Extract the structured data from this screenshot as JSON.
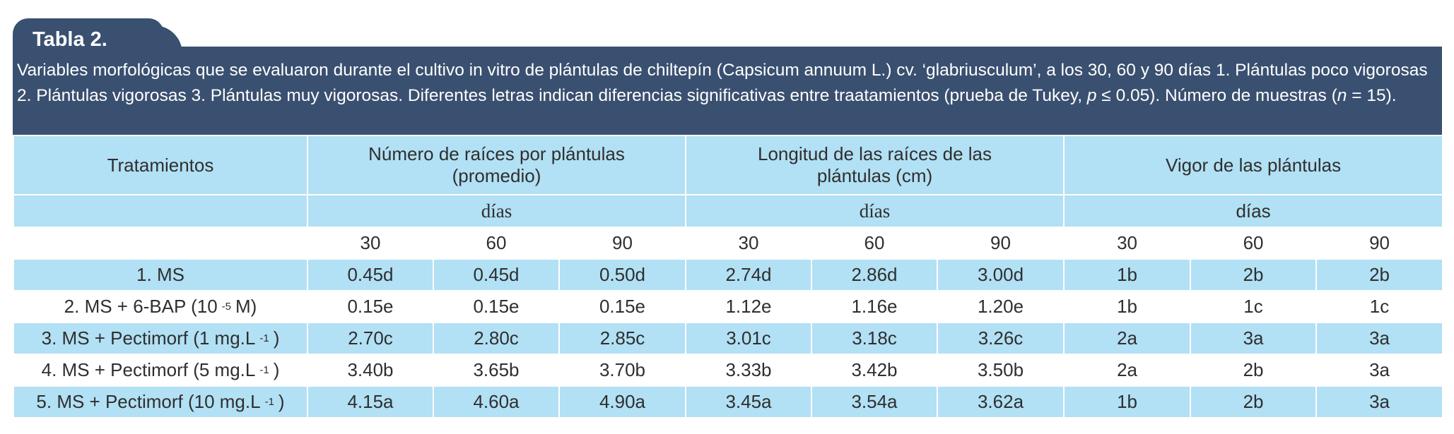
{
  "table_label": "Tabla 2.",
  "caption": {
    "part1": "Variables morfológicas que se evaluaron durante el cultivo in vitro de plántulas de chiltepín (Capsicum annuum L.) cv. ‘glabriusculum’, a los 30, 60 y 90 días 1. Plántulas poco vigorosas 2. Plántulas vigorosas 3. Plántulas muy vigorosas. Diferentes letras indican diferencias significativas entre traatamientos (prueba de Tukey, ",
    "p": "p",
    "part2": " ≤ 0.05). Número de muestras (",
    "n": "n",
    "part3": " = 15)."
  },
  "headers": {
    "treatments": "Tratamientos",
    "group1": "Número de raíces por plántulas (promedio)",
    "group2": "Longitud de las raíces de las plántulas (cm)",
    "group3": "Vigor de las plántulas",
    "dias1": "días",
    "dias2": "días",
    "dias3": "días",
    "days": [
      "30",
      "60",
      "90",
      "30",
      "60",
      "90",
      "30",
      "60",
      "90"
    ]
  },
  "rows": [
    {
      "label": "1. MS",
      "sup": "",
      "suffix": "",
      "values": [
        "0.45d",
        "0.45d",
        "0.50d",
        "2.74d",
        "2.86d",
        "3.00d",
        "1b",
        "2b",
        "2b"
      ]
    },
    {
      "label": "2. MS + 6-BAP (10",
      "sup": "-5",
      "suffix": "M)",
      "values": [
        "0.15e",
        "0.15e",
        "0.15e",
        "1.12e",
        "1.16e",
        "1.20e",
        "1b",
        "1c",
        "1c"
      ]
    },
    {
      "label": "3. MS + Pectimorf (1 mg.L",
      "sup": "-1",
      "suffix": ")",
      "values": [
        "2.70c",
        "2.80c",
        "2.85c",
        "3.01c",
        "3.18c",
        "3.26c",
        "2a",
        "3a",
        "3a"
      ]
    },
    {
      "label": "4. MS + Pectimorf (5 mg.L",
      "sup": "-1",
      "suffix": ")",
      "values": [
        "3.40b",
        "3.65b",
        "3.70b",
        "3.33b",
        "3.42b",
        "3.50b",
        "2a",
        "2b",
        "3a"
      ]
    },
    {
      "label": "5. MS + Pectimorf (10 mg.L",
      "sup": "-1",
      "suffix": ")",
      "values": [
        "4.15a",
        "4.60a",
        "4.90a",
        "3.45a",
        "3.54a",
        "3.62a",
        "1b",
        "2b",
        "3a"
      ]
    }
  ],
  "colors": {
    "header_bg": "#3a5070",
    "row_blue": "#b2e0f4",
    "row_white": "#ffffff"
  }
}
